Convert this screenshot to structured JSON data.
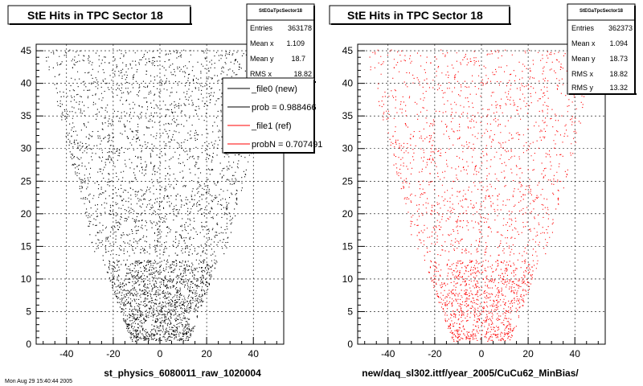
{
  "chart_data": [
    {
      "type": "scatter",
      "title": "StE Hits in TPC Sector 18",
      "xlabel": "st_physics_6080011_raw_1020004",
      "ylabel": "",
      "xlim": [
        -53,
        53
      ],
      "ylim": [
        0,
        46
      ],
      "x_ticks": [
        -40,
        -20,
        0,
        20,
        40
      ],
      "y_ticks": [
        0,
        5,
        10,
        15,
        20,
        25,
        30,
        35,
        40,
        45
      ],
      "grid": true,
      "color": "#000000",
      "stats": {
        "name": "StEGaTpcSector18",
        "rows": [
          {
            "label": "Entries",
            "value": "363178"
          },
          {
            "label": "Mean x",
            "value": "1.109"
          },
          {
            "label": "Mean y",
            "value": "18.7"
          },
          {
            "label": "RMS x",
            "value": "18.82"
          }
        ]
      },
      "legend": {
        "placement": "top-right",
        "entries": [
          {
            "label": "_file0 (new)",
            "color": "#000000"
          },
          {
            "label": "prob = 0.988466",
            "color": "#000000"
          },
          {
            "label": "_file1 (ref)",
            "color": "#ff0000"
          },
          {
            "label": "probN = 0.707491",
            "color": "#ff0000"
          }
        ]
      }
    },
    {
      "type": "scatter",
      "title": "StE Hits in TPC Sector 18",
      "xlabel": "new/daq_sl302.ittf/year_2005/CuCu62_MinBias/",
      "ylabel": "",
      "xlim": [
        -53,
        53
      ],
      "ylim": [
        0,
        46
      ],
      "x_ticks": [
        -40,
        -20,
        0,
        20,
        40
      ],
      "y_ticks": [
        0,
        5,
        10,
        15,
        20,
        25,
        30,
        35,
        40,
        45
      ],
      "grid": true,
      "color": "#ff0000",
      "stats": {
        "name": "StEGaTpcSector18",
        "rows": [
          {
            "label": "Entries",
            "value": "362373"
          },
          {
            "label": "Mean x",
            "value": "1.094"
          },
          {
            "label": "Mean y",
            "value": "18.73"
          },
          {
            "label": "RMS x",
            "value": "18.82"
          },
          {
            "label": "RMS y",
            "value": "13.32"
          }
        ]
      }
    }
  ],
  "footer": {
    "timestamp": "Mon Aug 29 15:40:44 2005"
  }
}
